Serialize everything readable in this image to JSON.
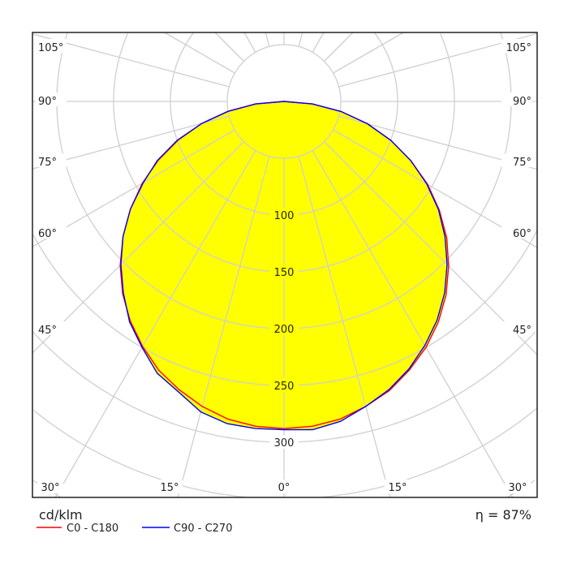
{
  "chart_data": {
    "type": "polar",
    "unit_label": "cd/klm",
    "efficiency_label": "η = 87%",
    "radial_tick_labels": [
      "100",
      "150",
      "200",
      "250",
      "300"
    ],
    "radial_ticks": [
      100,
      150,
      200,
      250,
      300
    ],
    "radial_grid_step": 50,
    "angle_grid_step_deg": 15,
    "angle_labels_side": [
      "105°",
      "90°",
      "75°",
      "60°",
      "45°"
    ],
    "angle_labels_side_values": [
      105,
      90,
      75,
      60,
      45
    ],
    "angle_labels_bottom": [
      "30°",
      "15°",
      "0°",
      "15°",
      "30°"
    ],
    "angle_labels_bottom_values": [
      -30,
      -15,
      0,
      15,
      30
    ],
    "fill_color": "#ffff00",
    "grid": true,
    "legend_position": "bottom-left",
    "angles_deg": [
      -90,
      -85,
      -80,
      -75,
      -70,
      -65,
      -60,
      -55,
      -50,
      -45,
      -40,
      -35,
      -30,
      -25,
      -20,
      -15,
      -10,
      -5,
      0,
      5,
      10,
      15,
      20,
      25,
      30,
      35,
      40,
      45,
      50,
      55,
      60,
      65,
      70,
      75,
      80,
      85,
      90
    ],
    "series": [
      {
        "name": "C0 - C180",
        "color": "#ff0000",
        "values": [
          0,
          25,
          50,
          75,
          99,
          122,
          144,
          165,
          185,
          204,
          221,
          236,
          249,
          261,
          270,
          278,
          284,
          287,
          288,
          287,
          284,
          278,
          271,
          261,
          250,
          237,
          222,
          205,
          187,
          167,
          146,
          123,
          100,
          76,
          51,
          25,
          0
        ]
      },
      {
        "name": "C90 - C270",
        "color": "#0000ff",
        "values": [
          0,
          25,
          50,
          75,
          100,
          123,
          143,
          165,
          185,
          203,
          220,
          237,
          250,
          264,
          272,
          283,
          288,
          289,
          289,
          290,
          286,
          278,
          270,
          260,
          248,
          235,
          220,
          203,
          185,
          166,
          145,
          123,
          100,
          76,
          51,
          25,
          0
        ]
      }
    ]
  }
}
